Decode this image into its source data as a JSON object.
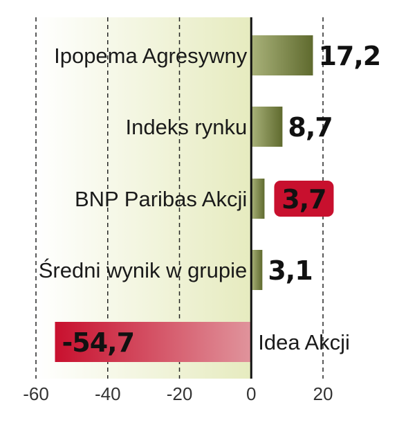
{
  "chart_data": {
    "type": "bar",
    "orientation": "horizontal",
    "categories": [
      "Ipopema Agresywny",
      "Indeks rynku",
      "BNP Paribas Akcji",
      "Średni wynik w grupie",
      "Idea Akcji"
    ],
    "values": [
      17.2,
      8.7,
      3.7,
      3.1,
      -54.7
    ],
    "value_labels": [
      "17,2",
      "8,7",
      "3,7",
      "3,1",
      "-54,7"
    ],
    "highlighted": [
      false,
      false,
      true,
      false,
      true
    ],
    "xlim": [
      -60,
      20
    ],
    "xticks": [
      -60,
      -40,
      -20,
      0,
      20
    ],
    "xtick_labels": [
      "-60",
      "-40",
      "-20",
      "0",
      "20"
    ],
    "grid": "vertical dashed",
    "colors": {
      "positive_bar": "#6f7a3c",
      "negative_bar": "#c8102e",
      "highlight_badge": "#c8102e",
      "zero_line": "#111111",
      "grid": "#222222",
      "background_tint": "#eef0d2"
    }
  }
}
